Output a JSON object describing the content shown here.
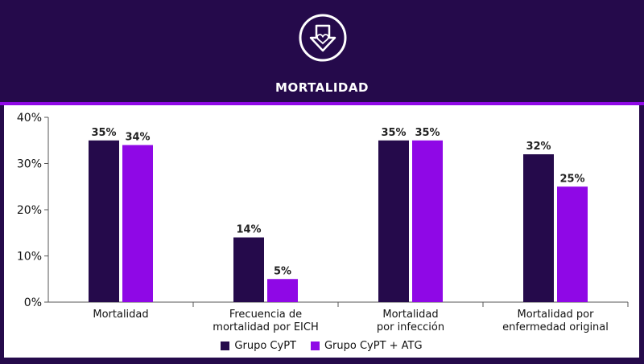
{
  "header": {
    "title": "MORTALIDAD",
    "icon": "heart-down-arrow-icon"
  },
  "colors": {
    "background": "#250a4b",
    "accent": "#8f08e6",
    "series1": "#250a4b",
    "series2": "#8f08e6"
  },
  "chart_data": {
    "type": "bar",
    "categories": [
      [
        "Mortalidad"
      ],
      [
        "Frecuencia de",
        "mortalidad por EICH"
      ],
      [
        "Mortalidad",
        "por infección"
      ],
      [
        "Mortalidad por",
        "enfermedad original"
      ]
    ],
    "series": [
      {
        "name": "Grupo CyPT",
        "values": [
          35,
          14,
          35,
          32
        ]
      },
      {
        "name": "Grupo CyPT + ATG",
        "values": [
          34,
          5,
          35,
          25
        ]
      }
    ],
    "data_labels": [
      [
        "35%",
        "14%",
        "35%",
        "32%"
      ],
      [
        "34%",
        "5%",
        "35%",
        "25%"
      ]
    ],
    "yticks": [
      "0%",
      "10%",
      "20%",
      "30%",
      "40%"
    ],
    "ylim": [
      0,
      40
    ],
    "grid": false,
    "legend_position": "bottom"
  }
}
